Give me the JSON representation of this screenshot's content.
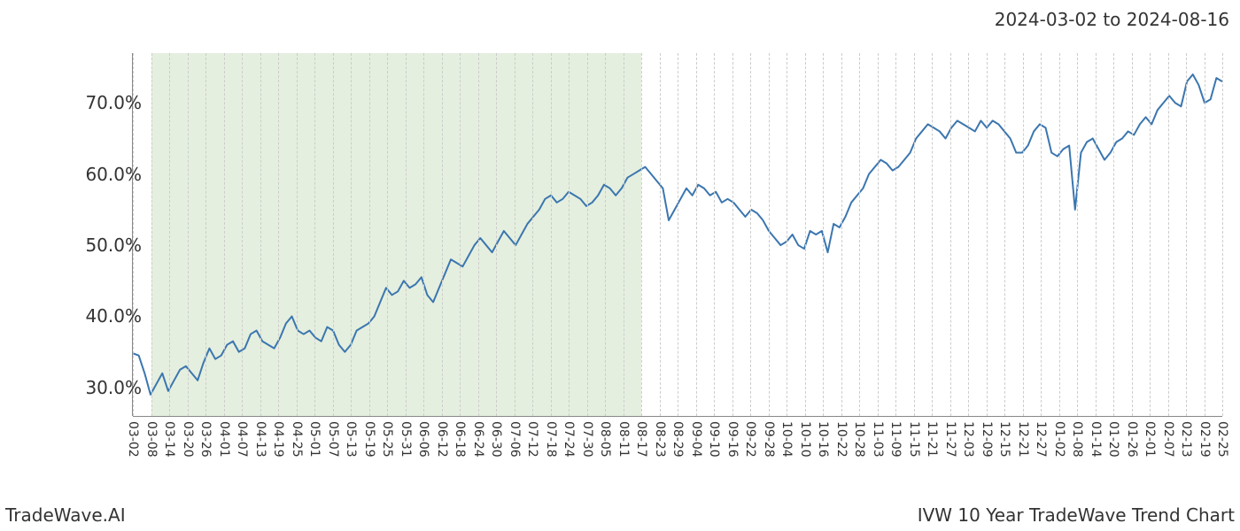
{
  "header": {
    "date_range": "2024-03-02 to 2024-08-16"
  },
  "footer": {
    "left": "TradeWave.AI",
    "right": "IVW 10 Year TradeWave Trend Chart"
  },
  "chart": {
    "type": "line",
    "background_color": "#ffffff",
    "line_color": "#3b76af",
    "line_width": 2.0,
    "shaded_region_color": "#e1ecd9",
    "shaded_region_opacity": 0.85,
    "grid_color": "#cccccc",
    "grid_style": "dashed",
    "axis_color": "#888888",
    "tick_fontsize_x": 14,
    "tick_fontsize_y": 20,
    "y_axis": {
      "min": 26,
      "max": 77,
      "ticks": [
        30,
        40,
        50,
        60,
        70
      ],
      "tick_labels": [
        "30.0%",
        "40.0%",
        "50.0%",
        "60.0%",
        "70.0%"
      ]
    },
    "x_axis": {
      "tick_labels": [
        "03-02",
        "03-08",
        "03-14",
        "03-20",
        "03-26",
        "04-01",
        "04-07",
        "04-13",
        "04-19",
        "04-25",
        "05-01",
        "05-07",
        "05-13",
        "05-19",
        "05-25",
        "05-31",
        "06-06",
        "06-12",
        "06-18",
        "06-24",
        "06-30",
        "07-06",
        "07-12",
        "07-18",
        "07-24",
        "07-30",
        "08-05",
        "08-11",
        "08-17",
        "08-23",
        "08-29",
        "09-04",
        "09-10",
        "09-16",
        "09-22",
        "09-28",
        "10-04",
        "10-10",
        "10-16",
        "10-22",
        "10-28",
        "11-03",
        "11-09",
        "11-15",
        "11-21",
        "11-27",
        "12-03",
        "12-09",
        "12-15",
        "12-21",
        "12-27",
        "01-02",
        "01-08",
        "01-14",
        "01-20",
        "01-26",
        "02-01",
        "02-07",
        "02-13",
        "02-19",
        "02-25"
      ]
    },
    "shaded_region": {
      "start_index": 1,
      "end_index": 28
    },
    "series": {
      "values": [
        34.8,
        34.5,
        32,
        29,
        30.5,
        32,
        29.5,
        31,
        32.5,
        33,
        32,
        31,
        33.5,
        35.5,
        34,
        34.5,
        36,
        36.5,
        35,
        35.5,
        37.5,
        38,
        36.5,
        36,
        35.5,
        37,
        39,
        40,
        38,
        37.5,
        38,
        37,
        36.5,
        38.5,
        38,
        36,
        35,
        36,
        38,
        38.5,
        39,
        40,
        42,
        44,
        43,
        43.5,
        45,
        44,
        44.5,
        45.5,
        43,
        42,
        44,
        46,
        48,
        47.5,
        47,
        48.5,
        50,
        51,
        50,
        49,
        50.5,
        52,
        51,
        50,
        51.5,
        53,
        54,
        55,
        56.5,
        57,
        56,
        56.5,
        57.5,
        57,
        56.5,
        55.5,
        56,
        57,
        58.5,
        58,
        57,
        58,
        59.5,
        60,
        60.5,
        61,
        60,
        59,
        58,
        53.5,
        55,
        56.5,
        58,
        57,
        58.5,
        58,
        57,
        57.5,
        56,
        56.5,
        56,
        55,
        54,
        55,
        54.5,
        53.5,
        52,
        51,
        50,
        50.5,
        51.5,
        50,
        49.5,
        52,
        51.5,
        52,
        49,
        53,
        52.5,
        54,
        56,
        57,
        58,
        60,
        61,
        62,
        61.5,
        60.5,
        61,
        62,
        63,
        65,
        66,
        67,
        66.5,
        66,
        65,
        66.5,
        67.5,
        67,
        66.5,
        66,
        67.5,
        66.5,
        67.5,
        67,
        66,
        65,
        63,
        63,
        64,
        66,
        67,
        66.5,
        63,
        62.5,
        63.5,
        64,
        55,
        63,
        64.5,
        65,
        63.5,
        62,
        63,
        64.5,
        65,
        66,
        65.5,
        67,
        68,
        67,
        69,
        70,
        71,
        70,
        69.5,
        73,
        74,
        72.5,
        70,
        70.5,
        73.5,
        73
      ]
    }
  }
}
